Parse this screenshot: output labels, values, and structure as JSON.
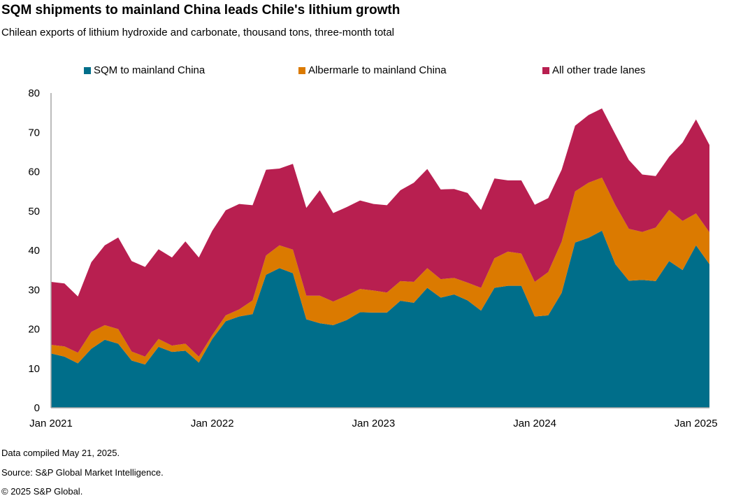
{
  "title": "SQM shipments to mainland China leads Chile's lithium growth",
  "subtitle": "Chilean exports of lithium hydroxide and carbonate, thousand tons, three-month total",
  "footer": {
    "compiled": "Data compiled May 21, 2025.",
    "source": "Source: S&P Global Market Intelligence.",
    "copyright": "© 2025 S&P Global."
  },
  "chart_data": {
    "type": "area",
    "stacked": true,
    "title": "SQM shipments to mainland China leads Chile's lithium growth",
    "subtitle": "Chilean exports of lithium hydroxide and carbonate, thousand tons, three-month total",
    "legend_position": "top",
    "grid": false,
    "ylim": [
      0,
      80
    ],
    "yticks": [
      0,
      10,
      20,
      30,
      40,
      50,
      60,
      70,
      80
    ],
    "xtick_labels": [
      {
        "x": "2021-01",
        "label": "Jan 2021"
      },
      {
        "x": "2022-01",
        "label": "Jan 2022"
      },
      {
        "x": "2023-01",
        "label": "Jan 2023"
      },
      {
        "x": "2024-01",
        "label": "Jan 2024"
      },
      {
        "x": "2025-01",
        "label": "Jan 2025"
      }
    ],
    "x": [
      "2021-01",
      "2021-02",
      "2021-03",
      "2021-04",
      "2021-05",
      "2021-06",
      "2021-07",
      "2021-08",
      "2021-09",
      "2021-10",
      "2021-11",
      "2021-12",
      "2022-01",
      "2022-02",
      "2022-03",
      "2022-04",
      "2022-05",
      "2022-06",
      "2022-07",
      "2022-08",
      "2022-09",
      "2022-10",
      "2022-11",
      "2022-12",
      "2023-01",
      "2023-02",
      "2023-03",
      "2023-04",
      "2023-05",
      "2023-06",
      "2023-07",
      "2023-08",
      "2023-09",
      "2023-10",
      "2023-11",
      "2023-12",
      "2024-01",
      "2024-02",
      "2024-03",
      "2024-04",
      "2024-05",
      "2024-06",
      "2024-07",
      "2024-08",
      "2024-09",
      "2024-10",
      "2024-11",
      "2024-12",
      "2025-01",
      "2025-02"
    ],
    "series": [
      {
        "name": "SQM to mainland China",
        "color": "#006E8A",
        "values": [
          13.8,
          13,
          11.3,
          15,
          17.3,
          16.3,
          12,
          11,
          15.5,
          14.2,
          14.5,
          11.5,
          17.5,
          22,
          23.2,
          23.8,
          33.8,
          35.5,
          34.2,
          22.5,
          21.5,
          21,
          22.3,
          24.3,
          24.2,
          24.2,
          27.2,
          26.7,
          30.5,
          28,
          28.8,
          27.3,
          24.7,
          30.5,
          31,
          31,
          23.2,
          23.5,
          29.2,
          42,
          43.2,
          45,
          36.5,
          32.3,
          32.5,
          32.2,
          37.3,
          35,
          41.3,
          36.5
        ]
      },
      {
        "name": "Albermarle to mainland China",
        "color": "#DB7A00",
        "values": [
          2.2,
          2.6,
          2.7,
          4.3,
          3.7,
          3.7,
          2.3,
          2,
          2,
          1.6,
          1.8,
          1.5,
          1,
          1.5,
          1.8,
          3.5,
          4.9,
          5.8,
          6,
          6,
          7,
          6,
          6.2,
          5.9,
          5.6,
          5.1,
          5,
          5.3,
          5,
          4.7,
          4.2,
          4.5,
          5.8,
          7.5,
          8.7,
          8.2,
          8.8,
          11,
          13,
          13,
          14,
          13.5,
          15,
          13.2,
          12.2,
          13.6,
          13,
          12.5,
          8.1,
          8.1
        ]
      },
      {
        "name": "All other trade lanes",
        "color": "#B81F50",
        "values": [
          16,
          16,
          14.3,
          17.7,
          20.3,
          23.3,
          23,
          22.8,
          22.8,
          22.4,
          26,
          25.2,
          26.5,
          26.7,
          26.8,
          24.2,
          21.8,
          19.5,
          21.8,
          22.3,
          26.8,
          22.5,
          22.5,
          22.5,
          22,
          22.2,
          23.1,
          25.2,
          25.2,
          22.8,
          22.6,
          22.8,
          19.8,
          20.3,
          18.1,
          18.6,
          19.6,
          18.8,
          18.3,
          16.7,
          17.2,
          17.6,
          18,
          17.5,
          14.6,
          13.1,
          13.5,
          19.9,
          23.9,
          22.2
        ]
      }
    ]
  }
}
